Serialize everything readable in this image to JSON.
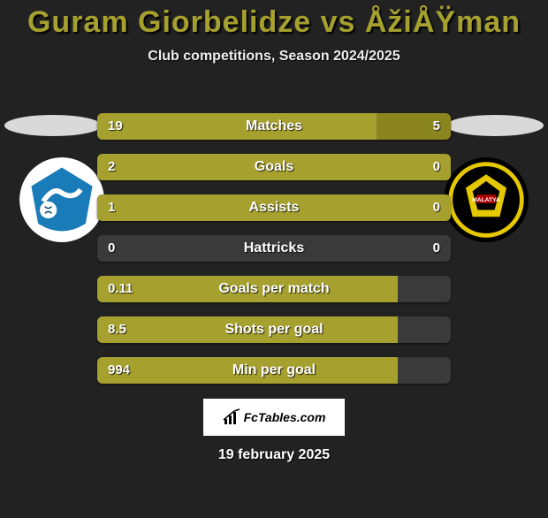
{
  "background_color": "#222222",
  "title": {
    "text": "Guram Giorbelidze vs ÅžiÅŸman",
    "color": "#a6a02e",
    "fontsize": 34,
    "fontweight": 900
  },
  "subtitle": {
    "text": "Club competitions, Season 2024/2025",
    "fontsize": 16
  },
  "logos": {
    "left": {
      "bg": "#ffffff",
      "shape_color": "#1a7bb9",
      "accent": "#0b4f7a"
    },
    "right": {
      "bg": "#000000",
      "shape_color": "#e6c800",
      "accent": "#b00000"
    }
  },
  "bar_styling": {
    "track_bg": "#3a3a3a",
    "left_color": "#a6a02e",
    "right_color": "#8b8520",
    "height": 30,
    "gap": 16,
    "radius": 6,
    "label_fontsize": 16,
    "value_fontsize": 15
  },
  "bars": [
    {
      "label": "Matches",
      "left_val": "19",
      "right_val": "5",
      "left_width": 79,
      "right_width": 21
    },
    {
      "label": "Goals",
      "left_val": "2",
      "right_val": "0",
      "left_width": 100,
      "right_width": 0
    },
    {
      "label": "Assists",
      "left_val": "1",
      "right_val": "0",
      "left_width": 100,
      "right_width": 0
    },
    {
      "label": "Hattricks",
      "left_val": "0",
      "right_val": "0",
      "left_width": 0,
      "right_width": 0
    },
    {
      "label": "Goals per match",
      "left_val": "0.11",
      "right_val": "",
      "left_width": 85,
      "right_width": 0
    },
    {
      "label": "Shots per goal",
      "left_val": "8.5",
      "right_val": "",
      "left_width": 85,
      "right_width": 0
    },
    {
      "label": "Min per goal",
      "left_val": "994",
      "right_val": "",
      "left_width": 85,
      "right_width": 0
    }
  ],
  "brand": {
    "text": "FcTables.com"
  },
  "date": {
    "text": "19 february 2025"
  }
}
